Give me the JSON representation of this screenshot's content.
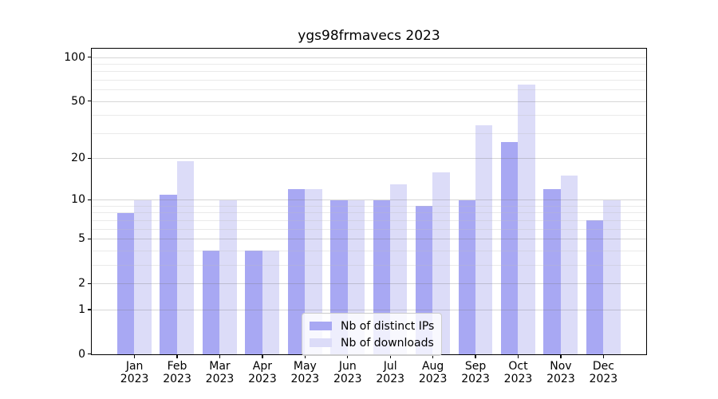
{
  "chart_data": {
    "type": "bar",
    "title": "ygs98frmavecs 2023",
    "categories": [
      "Jan",
      "Feb",
      "Mar",
      "Apr",
      "May",
      "Jun",
      "Jul",
      "Aug",
      "Sep",
      "Oct",
      "Nov",
      "Dec"
    ],
    "year": "2023",
    "series": [
      {
        "name": "Nb of distinct IPs",
        "color": "#a8a8f3",
        "values": [
          8,
          11,
          4,
          4,
          12,
          10,
          10,
          9,
          10,
          26,
          12,
          7
        ]
      },
      {
        "name": "Nb of downloads",
        "color": "#dcdcf8",
        "values": [
          10,
          19,
          10,
          4,
          12,
          10,
          13,
          16,
          34,
          65,
          15,
          10
        ]
      }
    ],
    "y_scale": "log1p",
    "y_major_ticks": [
      0,
      1,
      2,
      5,
      10,
      20,
      50,
      100
    ],
    "y_minor_gridlines": [
      3,
      4,
      6,
      7,
      8,
      9,
      30,
      40,
      60,
      70,
      80,
      90
    ],
    "ylim": [
      0,
      113
    ],
    "xlabel": "",
    "ylabel": "",
    "grid": true,
    "legend_position": "lower center"
  },
  "colors": {
    "axis": "#000000",
    "grid_major": "#d8d8d8",
    "grid_minor": "#ececec",
    "background": "#ffffff"
  }
}
